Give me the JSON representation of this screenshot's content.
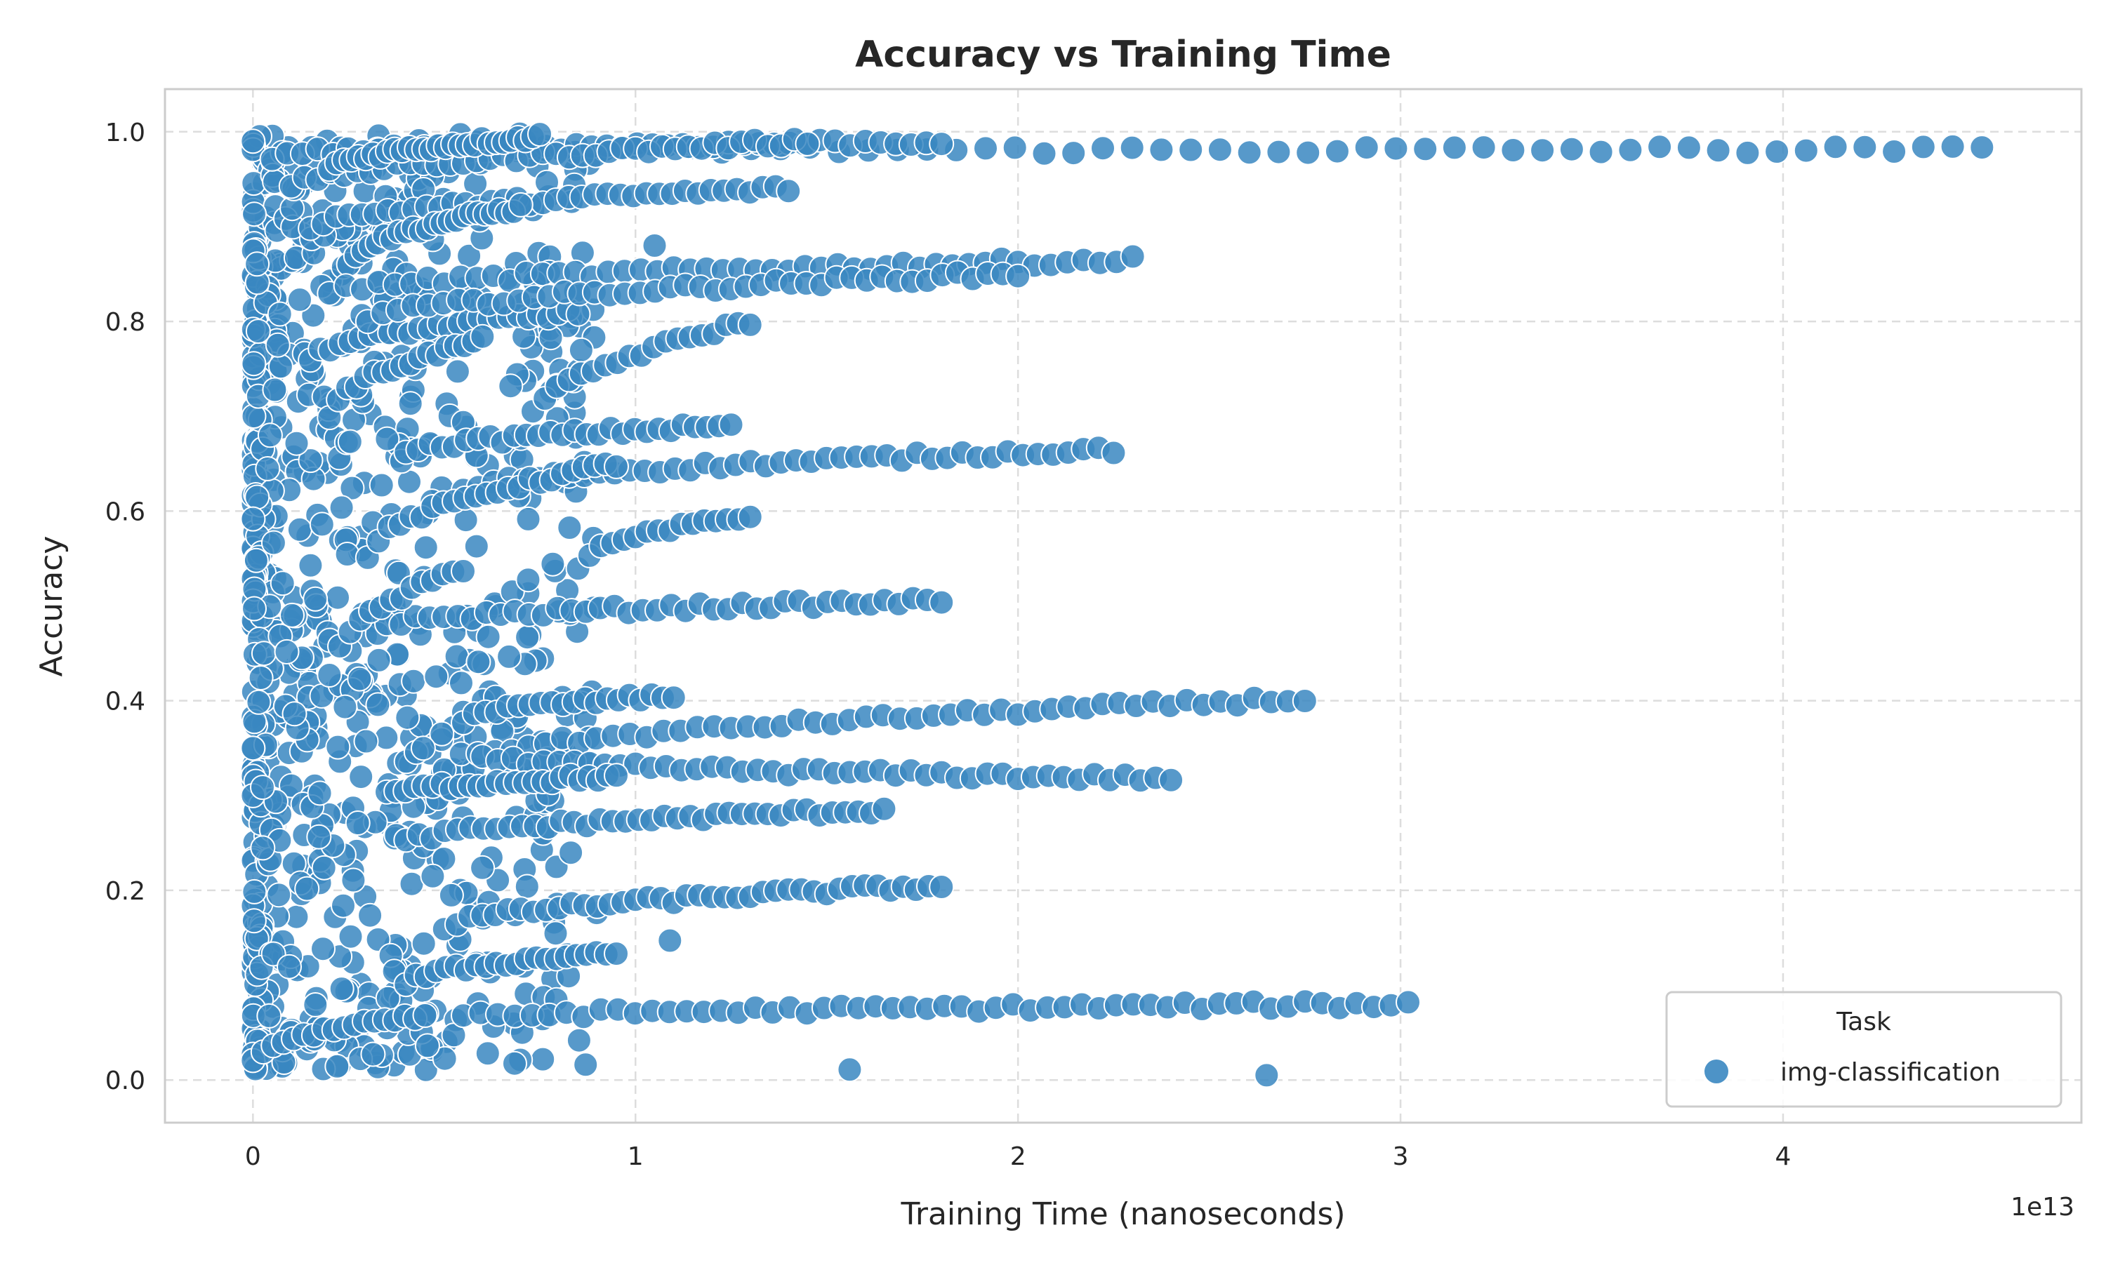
{
  "chart_data": {
    "type": "scatter",
    "title": "Accuracy vs Training Time",
    "xlabel": "Training Time (nanoseconds)",
    "ylabel": "Accuracy",
    "x_offset_label": "1e13",
    "xlim": [
      -0.23,
      4.78
    ],
    "ylim": [
      -0.045,
      1.045
    ],
    "x_ticks": [
      0,
      1,
      2,
      3,
      4
    ],
    "x_tick_labels": [
      "0",
      "1",
      "2",
      "3",
      "4"
    ],
    "y_ticks": [
      0.0,
      0.2,
      0.4,
      0.6,
      0.8,
      1.0
    ],
    "y_tick_labels": [
      "0.0",
      "0.2",
      "0.4",
      "0.6",
      "0.8",
      "1.0"
    ],
    "grid": true,
    "legend": {
      "title": "Task",
      "position": "lower-right",
      "entries": [
        "img-classification"
      ]
    },
    "color": "#3a87c1",
    "series": [
      {
        "name": "img-classification",
        "trajectories": [
          {
            "x_start": 0.0,
            "x_end": 4.52,
            "y_start": 0.98,
            "y_end": 0.981,
            "n": 60
          },
          {
            "x_start": 0.05,
            "x_end": 1.8,
            "y_start": 0.975,
            "y_end": 0.99,
            "n": 45
          },
          {
            "x_start": 0.1,
            "x_end": 1.45,
            "y_start": 0.94,
            "y_end": 0.99,
            "n": 40
          },
          {
            "x_start": 0.15,
            "x_end": 1.4,
            "y_start": 0.9,
            "y_end": 0.94,
            "n": 38
          },
          {
            "x_start": 0.2,
            "x_end": 0.75,
            "y_start": 0.96,
            "y_end": 0.995,
            "n": 30
          },
          {
            "x_start": 0.25,
            "x_end": 0.7,
            "y_start": 0.86,
            "y_end": 0.92,
            "n": 25
          },
          {
            "x_start": 0.2,
            "x_end": 2.3,
            "y_start": 0.83,
            "y_end": 0.865,
            "n": 50
          },
          {
            "x_start": 0.15,
            "x_end": 0.85,
            "y_start": 0.76,
            "y_end": 0.81,
            "n": 28
          },
          {
            "x_start": 0.3,
            "x_end": 2.0,
            "y_start": 0.8,
            "y_end": 0.85,
            "n": 44
          },
          {
            "x_start": 0.2,
            "x_end": 0.6,
            "y_start": 0.7,
            "y_end": 0.78,
            "n": 18
          },
          {
            "x_start": 0.7,
            "x_end": 1.3,
            "y_start": 0.68,
            "y_end": 0.8,
            "n": 20
          },
          {
            "x_start": 0.4,
            "x_end": 1.25,
            "y_start": 0.66,
            "y_end": 0.69,
            "n": 28
          },
          {
            "x_start": 0.55,
            "x_end": 2.25,
            "y_start": 0.62,
            "y_end": 0.665,
            "n": 44
          },
          {
            "x_start": 0.3,
            "x_end": 0.95,
            "y_start": 0.55,
            "y_end": 0.65,
            "n": 24
          },
          {
            "x_start": 0.85,
            "x_end": 1.3,
            "y_start": 0.54,
            "y_end": 0.595,
            "n": 16
          },
          {
            "x_start": 0.35,
            "x_end": 1.8,
            "y_start": 0.48,
            "y_end": 0.505,
            "n": 40
          },
          {
            "x_start": 0.2,
            "x_end": 0.55,
            "y_start": 0.43,
            "y_end": 0.54,
            "n": 14
          },
          {
            "x_start": 0.55,
            "x_end": 1.1,
            "y_start": 0.38,
            "y_end": 0.405,
            "n": 20
          },
          {
            "x_start": 0.5,
            "x_end": 2.75,
            "y_start": 0.33,
            "y_end": 0.402,
            "n": 52
          },
          {
            "x_start": 0.6,
            "x_end": 2.4,
            "y_start": 0.34,
            "y_end": 0.318,
            "n": 46
          },
          {
            "x_start": 0.35,
            "x_end": 0.95,
            "y_start": 0.3,
            "y_end": 0.32,
            "n": 26
          },
          {
            "x_start": 0.4,
            "x_end": 1.65,
            "y_start": 0.25,
            "y_end": 0.285,
            "n": 38
          },
          {
            "x_start": 0.5,
            "x_end": 1.8,
            "y_start": 0.16,
            "y_end": 0.205,
            "n": 40
          },
          {
            "x_start": 0.4,
            "x_end": 0.95,
            "y_start": 0.1,
            "y_end": 0.135,
            "n": 22
          },
          {
            "x_start": 0.55,
            "x_end": 3.02,
            "y_start": 0.065,
            "y_end": 0.08,
            "n": 56
          },
          {
            "x_start": 0.0,
            "x_end": 0.45,
            "y_start": 0.02,
            "y_end": 0.07,
            "n": 18
          }
        ],
        "outliers": [
          {
            "x": 1.56,
            "y": 0.011
          },
          {
            "x": 2.65,
            "y": 0.005
          },
          {
            "x": 1.09,
            "y": 0.147
          },
          {
            "x": 1.05,
            "y": 0.88
          },
          {
            "x": 0.0,
            "y": 0.99
          },
          {
            "x": 0.0,
            "y": 0.35
          }
        ],
        "cluster_x_range": [
          0.0,
          0.9
        ],
        "cluster_y_range": [
          0.01,
          1.0
        ]
      }
    ]
  }
}
